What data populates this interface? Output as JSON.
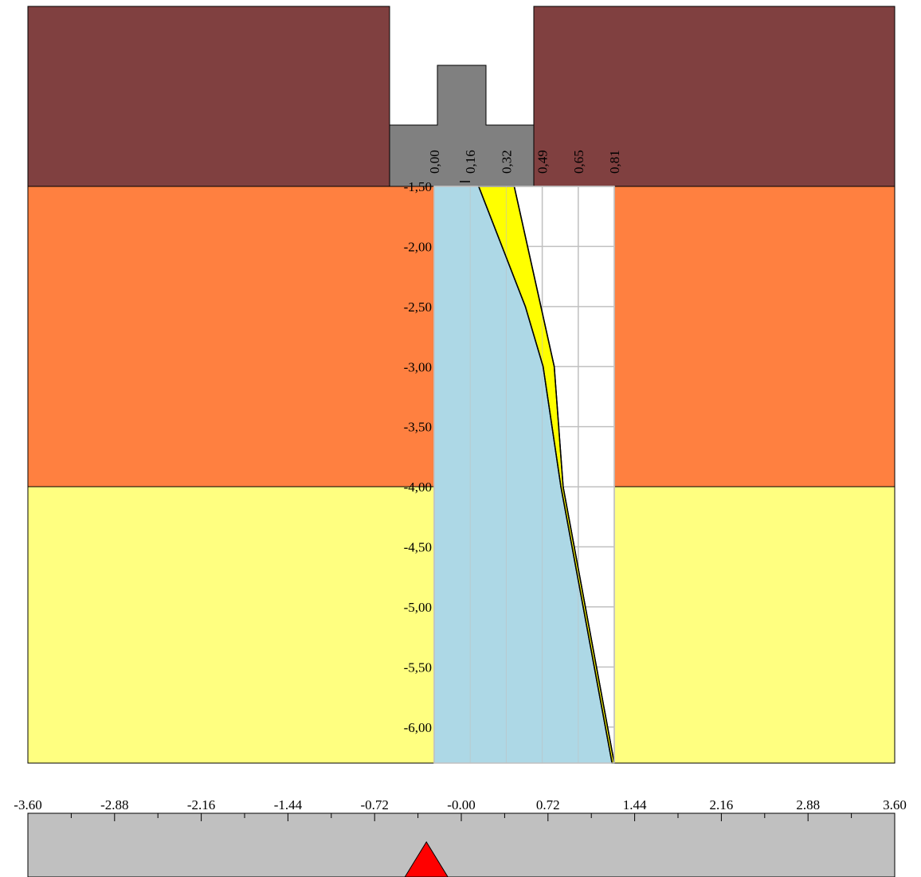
{
  "colors": {
    "top_soil": "#804040",
    "middle_soil": "#ff8040",
    "bottom_soil": "#ffff80",
    "foundation": "#808080",
    "pile_fill": "#add8e6",
    "envelope_fill": "#ffff00",
    "grid": "#c0c0c0",
    "scale_bar": "#c0c0c0",
    "marker": "#ff0000"
  },
  "depth_labels": [
    "-1,50",
    "-2,00",
    "-2,50",
    "-3,00",
    "-3,50",
    "-4,00",
    "-4,50",
    "-5,00",
    "-5,50",
    "-6,00"
  ],
  "value_labels": [
    "0,00",
    "0,16",
    "0,32",
    "0,49",
    "0,65",
    "0,81"
  ],
  "scale_labels": [
    "-3.60",
    "-2.88",
    "-2.16",
    "-1.44",
    "-0.72",
    "-0.00",
    "0.72",
    "1.44",
    "2.16",
    "2.88",
    "3.60"
  ],
  "chart_data": {
    "type": "line",
    "depth_axis": {
      "range": [
        -1.5,
        -6.3
      ]
    },
    "value_axis": {
      "range": [
        0.0,
        0.81
      ]
    },
    "series": [
      {
        "values": [
          {
            "depth": -1.5,
            "value": 0.2
          },
          {
            "depth": -2.5,
            "value": 0.41
          },
          {
            "depth": -3.0,
            "value": 0.49
          },
          {
            "depth": -4.0,
            "value": 0.57
          },
          {
            "depth": -5.0,
            "value": 0.67
          },
          {
            "depth": -6.3,
            "value": 0.8
          }
        ]
      },
      {
        "values": [
          {
            "depth": -1.5,
            "value": 0.36
          },
          {
            "depth": -2.5,
            "value": 0.48
          },
          {
            "depth": -3.0,
            "value": 0.54
          },
          {
            "depth": -4.0,
            "value": 0.58
          },
          {
            "depth": -5.0,
            "value": 0.68
          },
          {
            "depth": -6.3,
            "value": 0.81
          }
        ]
      }
    ],
    "scale_marker": -0.29
  }
}
